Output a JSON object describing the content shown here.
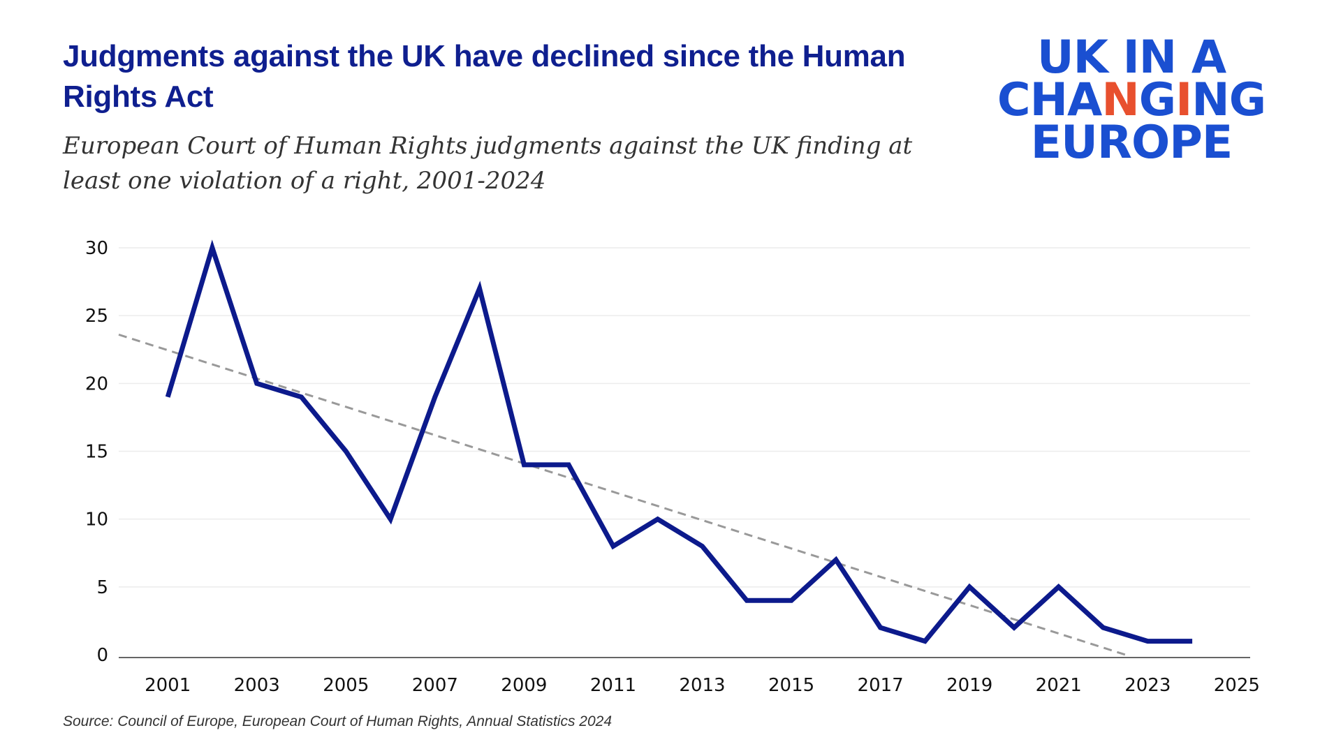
{
  "header": {
    "title": "Judgments against the UK have declined since the Human Rights Act",
    "subtitle": "European Court of Human Rights judgments against the UK finding at least one violation of a right, 2001-2024"
  },
  "logo": {
    "line1": "UK IN A",
    "line2_a": "CH",
    "line2_b": "A",
    "line2_c": "N",
    "line2_d": "G",
    "line2_e": "I",
    "line2_f": "NG",
    "line3": "EUROPE",
    "color": "#1a4fd1",
    "accent_color": "#e8502e"
  },
  "source": "Source: Council of Europe, European Court of Human Rights, Annual Statistics 2024",
  "chart_data": {
    "type": "line",
    "title": "",
    "xlabel": "",
    "ylabel": "",
    "x": [
      2001,
      2002,
      2003,
      2004,
      2005,
      2006,
      2007,
      2008,
      2009,
      2010,
      2011,
      2012,
      2013,
      2014,
      2015,
      2016,
      2017,
      2018,
      2019,
      2020,
      2021,
      2022,
      2023,
      2024
    ],
    "series": [
      {
        "values": [
          19,
          30,
          20,
          19,
          15,
          10,
          19,
          27,
          14,
          14,
          8,
          10,
          8,
          4,
          4,
          7,
          2,
          1,
          5,
          2,
          5,
          2,
          1,
          1
        ],
        "color": "#0c1a8c"
      }
    ],
    "trendline": {
      "style": "dashed",
      "color": "#999999",
      "x": [
        1999.9,
        2022.5
      ],
      "y": [
        23.6,
        0
      ]
    },
    "xlim": [
      1999.9,
      2025.3
    ],
    "ylim": [
      0,
      30
    ],
    "xticks": [
      "2001",
      "2003",
      "2005",
      "2007",
      "2009",
      "2011",
      "2013",
      "2015",
      "2017",
      "2019",
      "2021",
      "2023",
      "2025"
    ],
    "yticks": [
      "0",
      "5",
      "10",
      "15",
      "20",
      "25",
      "30"
    ],
    "grid": true
  }
}
